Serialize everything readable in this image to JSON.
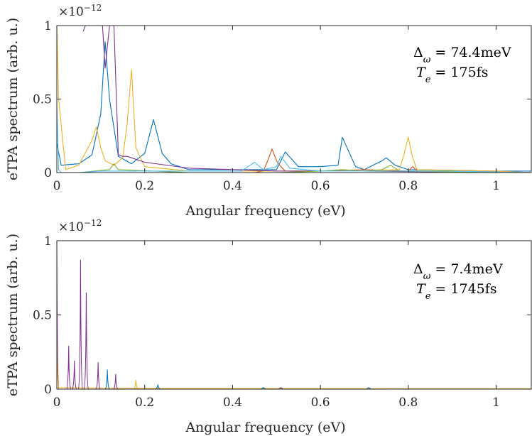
{
  "chart_data": [
    {
      "type": "line",
      "xlabel": "Angular frequency (eV)",
      "ylabel": "eTPA spectrum (arb. u.)",
      "y_exponent": "×10",
      "y_exponent_power": "−12",
      "xlim": [
        0,
        1.08
      ],
      "ylim": [
        0,
        1
      ],
      "xticks": [
        0,
        0.2,
        0.4,
        0.6,
        0.8,
        1
      ],
      "xtick_labels": [
        "0",
        "0.2",
        "0.4",
        "0.6",
        "0.8",
        "1"
      ],
      "yticks": [
        0,
        0.5,
        1
      ],
      "ytick_labels": [
        "0",
        "0.5",
        "1"
      ],
      "grid": false,
      "annotation": {
        "delta_symbol": "Δ",
        "delta_sub": "ω",
        "delta_value": " = 74.4meV",
        "te_symbol": "T",
        "te_sub": "e",
        "te_value": " = 175fs"
      },
      "series": [
        {
          "color": "#0072BD",
          "x": [
            0,
            0.01,
            0.05,
            0.08,
            0.1,
            0.11,
            0.12,
            0.14,
            0.17,
            0.2,
            0.22,
            0.24,
            0.26,
            0.3,
            0.4,
            0.5,
            0.52,
            0.55,
            0.6,
            0.64,
            0.65,
            0.68,
            0.7,
            0.74,
            0.75,
            0.77,
            0.8,
            1.0,
            1.08
          ],
          "y": [
            0.2,
            0.05,
            0.06,
            0.12,
            0.4,
            0.89,
            0.5,
            0.11,
            0.06,
            0.13,
            0.36,
            0.13,
            0.06,
            0.02,
            0.02,
            0.02,
            0.14,
            0.04,
            0.04,
            0.05,
            0.24,
            0.04,
            0.02,
            0.08,
            0.1,
            0.05,
            0.02,
            0.01,
            0.01
          ]
        },
        {
          "color": "#D95319",
          "x": [
            0,
            0.3,
            0.45,
            0.47,
            0.48,
            0.49,
            0.5,
            0.51,
            0.52,
            0.6,
            0.7,
            0.8,
            0.81,
            0.82,
            1.0,
            1.08
          ],
          "y": [
            0,
            0,
            0,
            0.01,
            0.08,
            0.16,
            0.08,
            0.04,
            0.01,
            0.01,
            0.02,
            0.01,
            0.04,
            0.01,
            0.01,
            0
          ]
        },
        {
          "color": "#EDB120",
          "x": [
            0,
            0.004,
            0.02,
            0.05,
            0.08,
            0.09,
            0.1,
            0.11,
            0.13,
            0.15,
            0.16,
            0.17,
            0.18,
            0.2,
            0.3,
            0.5,
            0.7,
            0.78,
            0.79,
            0.8,
            0.81,
            0.82,
            1.0,
            1.08
          ],
          "y": [
            1,
            0.5,
            0.02,
            0.05,
            0.22,
            0.31,
            0.17,
            0.08,
            0.05,
            0.1,
            0.33,
            0.7,
            0.17,
            0.04,
            0.01,
            0.01,
            0.01,
            0.02,
            0.12,
            0.24,
            0.1,
            0.02,
            0.01,
            0
          ]
        },
        {
          "color": "#7E2F8E",
          "x": [
            0.06,
            0.065,
            0.07,
            0.08,
            0.09,
            0.1,
            0.104,
            0.11,
            0.12,
            0.125,
            0.13,
            0.14,
            0.15,
            0.16,
            0.2,
            0.3,
            0.5,
            0.7,
            1.0,
            1.08
          ],
          "y": [
            0.96,
            1,
            1,
            1,
            1,
            1,
            1,
            0.71,
            1,
            1,
            1,
            0.12,
            0.11,
            0.11,
            0.07,
            0.03,
            0.01,
            0.01,
            0,
            0
          ]
        },
        {
          "color": "#77AC30",
          "x": [
            0,
            0.05,
            0.12,
            0.13,
            0.14,
            0.3,
            0.5,
            0.6,
            0.65,
            0.7,
            0.74,
            0.76,
            0.78,
            1.0,
            1.08
          ],
          "y": [
            0,
            0,
            0.02,
            0.06,
            0.02,
            0,
            0,
            0.01,
            0.02,
            0.01,
            0.02,
            0.05,
            0.01,
            0,
            0
          ]
        },
        {
          "color": "#4DBEEE",
          "x": [
            0,
            0.004,
            0.01,
            0.05,
            0.1,
            0.2,
            0.3,
            0.42,
            0.44,
            0.45,
            0.47,
            0.5,
            0.51,
            0.53,
            0.6,
            0.8,
            0.9,
            1.08
          ],
          "y": [
            0.45,
            0.02,
            0,
            0,
            0.01,
            0.01,
            0.01,
            0.01,
            0.05,
            0.07,
            0.02,
            0.04,
            0.11,
            0.03,
            0.01,
            0.01,
            0.01,
            0
          ]
        }
      ]
    },
    {
      "type": "line",
      "xlabel": "Angular frequency (eV)",
      "ylabel": "eTPA spectrum (arb. u.)",
      "y_exponent": "×10",
      "y_exponent_power": "−12",
      "xlim": [
        0,
        1.08
      ],
      "ylim": [
        0,
        1
      ],
      "xticks": [
        0,
        0.2,
        0.4,
        0.6,
        0.8,
        1
      ],
      "xtick_labels": [
        "0",
        "0.2",
        "0.4",
        "0.6",
        "0.8",
        "1"
      ],
      "yticks": [
        0,
        0.5,
        1
      ],
      "ytick_labels": [
        "0",
        "0.5",
        "1"
      ],
      "grid": false,
      "annotation": {
        "delta_symbol": "Δ",
        "delta_sub": "ω",
        "delta_value": " = 7.4meV",
        "te_symbol": "T",
        "te_sub": "e",
        "te_value": " = 1745fs"
      },
      "spikes": [
        {
          "color": "#7E2F8E",
          "x": 0.0,
          "y": 1.0
        },
        {
          "color": "#EDB120",
          "x": 0.0,
          "y": 0.35
        },
        {
          "color": "#7E2F8E",
          "x": 0.027,
          "y": 0.29
        },
        {
          "color": "#7E2F8E",
          "x": 0.04,
          "y": 0.19
        },
        {
          "color": "#7E2F8E",
          "x": 0.054,
          "y": 0.87
        },
        {
          "color": "#7E2F8E",
          "x": 0.067,
          "y": 0.65
        },
        {
          "color": "#7E2F8E",
          "x": 0.094,
          "y": 0.18
        },
        {
          "color": "#0072BD",
          "x": 0.115,
          "y": 0.13
        },
        {
          "color": "#7E2F8E",
          "x": 0.134,
          "y": 0.1
        },
        {
          "color": "#EDB120",
          "x": 0.18,
          "y": 0.06
        },
        {
          "color": "#0072BD",
          "x": 0.23,
          "y": 0.03
        },
        {
          "color": "#0072BD",
          "x": 0.47,
          "y": 0.01
        },
        {
          "color": "#7E2F8E",
          "x": 0.51,
          "y": 0.01
        },
        {
          "color": "#0072BD",
          "x": 0.71,
          "y": 0.01
        }
      ],
      "series": [
        {
          "color": "#EDB120",
          "x": [
            0,
            0.2,
            0.5,
            0.8,
            1.08
          ],
          "y": [
            0.01,
            0.005,
            0.004,
            0.003,
            0.003
          ]
        }
      ]
    }
  ]
}
